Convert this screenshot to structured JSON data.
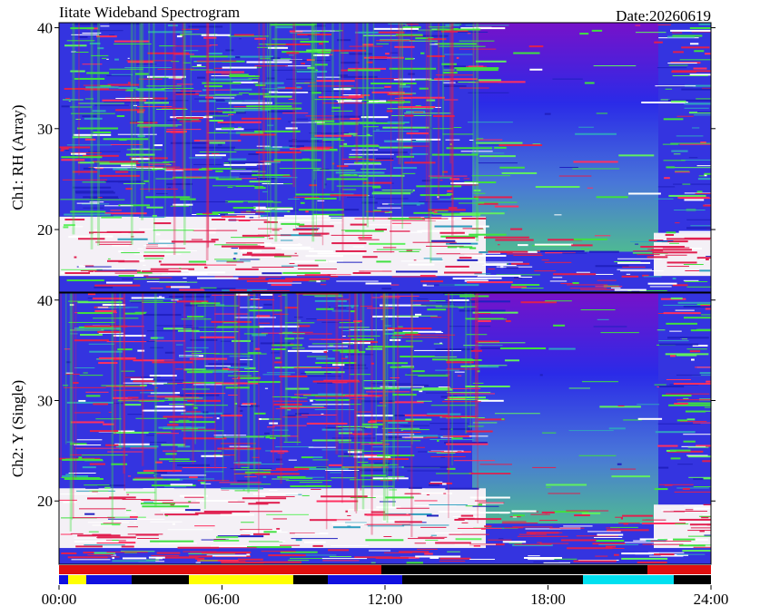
{
  "chart_data": [
    {
      "type": "spectrogram",
      "title": "Iitate Wideband Spectrogram",
      "annotation": "Date:20260619",
      "ylabel": "Ch1: RH (Array)",
      "ylim": [
        13.8,
        40.5
      ],
      "yticks": [
        20,
        30,
        40
      ]
    },
    {
      "type": "spectrogram",
      "ylabel": "Ch2: Y (Single)",
      "ylim": [
        13.7,
        40.7
      ],
      "yticks": [
        20,
        30,
        40
      ],
      "xlim": [
        0,
        24
      ],
      "xticks": [
        {
          "value": 0,
          "label": "00:00"
        },
        {
          "value": 6,
          "label": "06:00"
        },
        {
          "value": 12,
          "label": "12:00"
        },
        {
          "value": 18,
          "label": "18:00"
        },
        {
          "value": 24,
          "label": "24:00"
        }
      ]
    }
  ]
}
